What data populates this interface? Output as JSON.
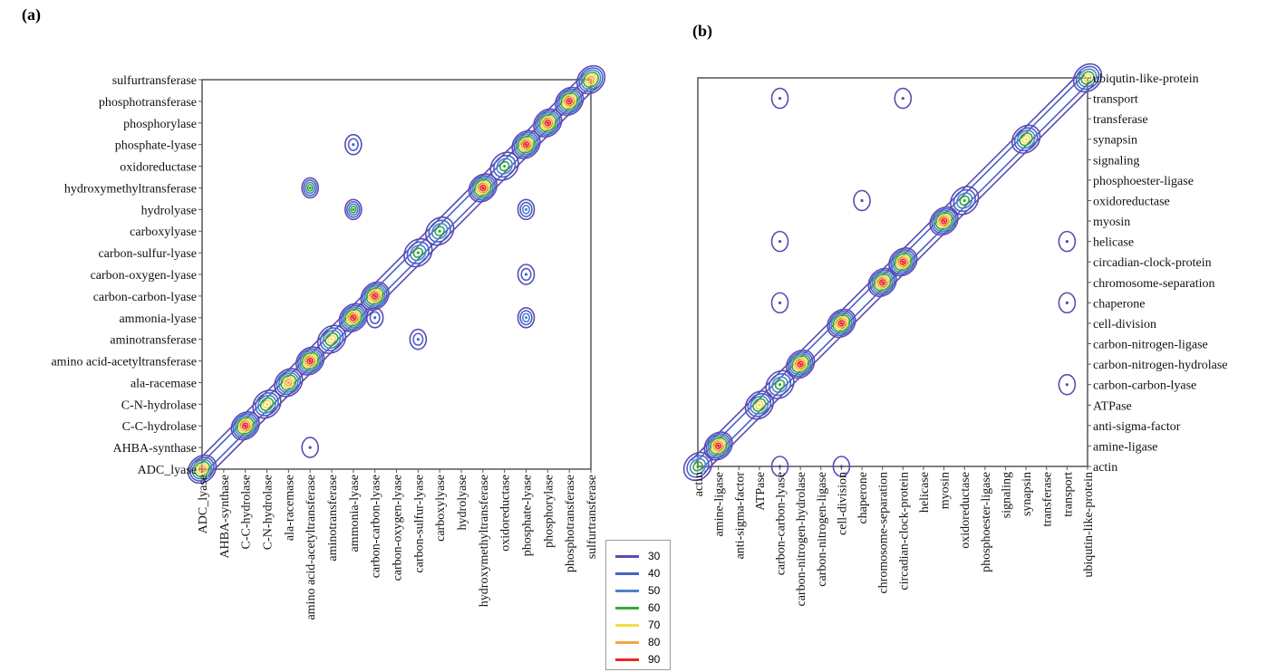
{
  "figure": {
    "panel_a_label": "(a)",
    "panel_b_label": "(b)"
  },
  "legend": {
    "levels": [
      {
        "label": "30",
        "color": "#5b4bb0"
      },
      {
        "label": "40",
        "color": "#4a62c8"
      },
      {
        "label": "50",
        "color": "#4e84c8"
      },
      {
        "label": "60",
        "color": "#37a836"
      },
      {
        "label": "70",
        "color": "#f2dc4a"
      },
      {
        "label": "80",
        "color": "#f4a640"
      },
      {
        "label": "90",
        "color": "#ea2828"
      }
    ]
  },
  "chart_data": [
    {
      "type": "heatmap",
      "subtype": "contour",
      "panel": "(a)",
      "categories": [
        "ADC_lyase",
        "AHBA-synthase",
        "C-C-hydrolase",
        "C-N-hydrolase",
        "ala-racemase",
        "amino acid-acetyltransferase",
        "aminotransferase",
        "ammonia-lyase",
        "carbon-carbon-lyase",
        "carbon-oxygen-lyase",
        "carbon-sulfur-lyase",
        "carboxylyase",
        "hydrolyase",
        "hydroxymethyltransferase",
        "oxidoreductase",
        "phosphate-lyase",
        "phosphorylase",
        "phosphotransferase",
        "sulfurtransferase"
      ],
      "contour_levels": [
        30,
        40,
        50,
        60,
        70,
        80,
        90
      ],
      "peaks": [
        {
          "x": "ADC_lyase",
          "y": "ADC_lyase",
          "value": 80
        },
        {
          "x": "C-C-hydrolase",
          "y": "C-C-hydrolase",
          "value": 90
        },
        {
          "x": "C-N-hydrolase",
          "y": "C-N-hydrolase",
          "value": 70
        },
        {
          "x": "ala-racemase",
          "y": "ala-racemase",
          "value": 80
        },
        {
          "x": "amino acid-acetyltransferase",
          "y": "amino acid-acetyltransferase",
          "value": 90
        },
        {
          "x": "aminotransferase",
          "y": "aminotransferase",
          "value": 70
        },
        {
          "x": "ammonia-lyase",
          "y": "ammonia-lyase",
          "value": 90
        },
        {
          "x": "carbon-carbon-lyase",
          "y": "carbon-carbon-lyase",
          "value": 90
        },
        {
          "x": "carbon-sulfur-lyase",
          "y": "carbon-sulfur-lyase",
          "value": 60
        },
        {
          "x": "carboxylyase",
          "y": "carboxylyase",
          "value": 60
        },
        {
          "x": "hydroxymethyltransferase",
          "y": "hydroxymethyltransferase",
          "value": 90
        },
        {
          "x": "oxidoreductase",
          "y": "oxidoreductase",
          "value": 60
        },
        {
          "x": "phosphate-lyase",
          "y": "phosphate-lyase",
          "value": 90
        },
        {
          "x": "phosphorylase",
          "y": "phosphorylase",
          "value": 90
        },
        {
          "x": "phosphotransferase",
          "y": "phosphotransferase",
          "value": 90
        },
        {
          "x": "sulfurtransferase",
          "y": "sulfurtransferase",
          "value": 80
        },
        {
          "x": "amino acid-acetyltransferase",
          "y": "hydroxymethyltransferase",
          "value": 60
        },
        {
          "x": "ammonia-lyase",
          "y": "hydrolyase",
          "value": 60
        },
        {
          "x": "carbon-carbon-lyase",
          "y": "ammonia-lyase",
          "value": 40
        },
        {
          "x": "phosphate-lyase",
          "y": "ammonia-lyase",
          "value": 50
        },
        {
          "x": "phosphate-lyase",
          "y": "hydrolyase",
          "value": 50
        },
        {
          "x": "phosphate-lyase",
          "y": "carbon-oxygen-lyase",
          "value": 40
        },
        {
          "x": "ammonia-lyase",
          "y": "phosphate-lyase",
          "value": 40
        },
        {
          "x": "amino acid-acetyltransferase",
          "y": "AHBA-synthase",
          "value": 30
        },
        {
          "x": "carbon-sulfur-lyase",
          "y": "aminotransferase",
          "value": 40
        }
      ]
    },
    {
      "type": "heatmap",
      "subtype": "contour",
      "panel": "(b)",
      "categories": [
        "actin",
        "amine-ligase",
        "anti-sigma-factor",
        "ATPase",
        "carbon-carbon-lyase",
        "carbon-nitrogen-hydrolase",
        "carbon-nitrogen-ligase",
        "cell-division",
        "chaperone",
        "chromosome-separation",
        "circadian-clock-protein",
        "helicase",
        "myosin",
        "oxidoreductase",
        "phosphoester-ligase",
        "signaling",
        "synapsin",
        "transferase",
        "transport",
        "ubiqutin-like-protein"
      ],
      "contour_levels": [
        30,
        40,
        50,
        60,
        70,
        80,
        90
      ],
      "peaks": [
        {
          "x": "actin",
          "y": "actin",
          "value": 60
        },
        {
          "x": "amine-ligase",
          "y": "amine-ligase",
          "value": 90
        },
        {
          "x": "ATPase",
          "y": "ATPase",
          "value": 70
        },
        {
          "x": "carbon-carbon-lyase",
          "y": "carbon-carbon-lyase",
          "value": 60
        },
        {
          "x": "carbon-nitrogen-hydrolase",
          "y": "carbon-nitrogen-hydrolase",
          "value": 90
        },
        {
          "x": "cell-division",
          "y": "cell-division",
          "value": 90
        },
        {
          "x": "chromosome-separation",
          "y": "chromosome-separation",
          "value": 90
        },
        {
          "x": "circadian-clock-protein",
          "y": "circadian-clock-protein",
          "value": 90
        },
        {
          "x": "myosin",
          "y": "myosin",
          "value": 90
        },
        {
          "x": "oxidoreductase",
          "y": "oxidoreductase",
          "value": 60
        },
        {
          "x": "synapsin",
          "y": "synapsin",
          "value": 70
        },
        {
          "x": "ubiqutin-like-protein",
          "y": "ubiqutin-like-protein",
          "value": 70
        },
        {
          "x": "carbon-carbon-lyase",
          "y": "transport",
          "value": 30
        },
        {
          "x": "carbon-carbon-lyase",
          "y": "chaperone",
          "value": 30
        },
        {
          "x": "carbon-carbon-lyase",
          "y": "helicase",
          "value": 30
        },
        {
          "x": "chaperone",
          "y": "oxidoreductase",
          "value": 30
        },
        {
          "x": "cell-division",
          "y": "actin",
          "value": 30
        },
        {
          "x": "carbon-carbon-lyase",
          "y": "actin",
          "value": 30
        },
        {
          "x": "transport",
          "y": "helicase",
          "value": 30
        },
        {
          "x": "transport",
          "y": "chaperone",
          "value": 30
        },
        {
          "x": "transport",
          "y": "carbon-carbon-lyase",
          "value": 30
        },
        {
          "x": "circadian-clock-protein",
          "y": "transport",
          "value": 30
        }
      ]
    }
  ]
}
